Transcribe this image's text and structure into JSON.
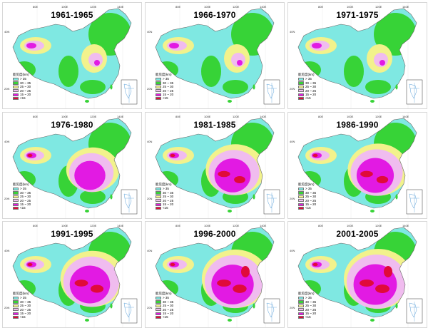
{
  "legend_title": "能见度(km)",
  "legend_items": [
    {
      "label": "> 35",
      "color": "#7fe8e2"
    },
    {
      "label": "30 ~ 35",
      "color": "#37d337"
    },
    {
      "label": "25 ~ 30",
      "color": "#f2f28c"
    },
    {
      "label": "20 ~ 25",
      "color": "#f0bcef"
    },
    {
      "label": "15 ~ 20",
      "color": "#e21ae3"
    },
    {
      "label": "<15",
      "color": "#e00a3a"
    }
  ],
  "lon_ticks": [
    "80E",
    "100E",
    "120E",
    "140E"
  ],
  "lat_ticks": [
    "40N",
    "20N"
  ],
  "panels": [
    {
      "title": "1961-1965"
    },
    {
      "title": "1966-1970"
    },
    {
      "title": "1971-1975"
    },
    {
      "title": "1976-1980"
    },
    {
      "title": "1981-1985"
    },
    {
      "title": "1986-1990"
    },
    {
      "title": "1991-1995"
    },
    {
      "title": "1996-2000"
    },
    {
      "title": "2001-2005"
    }
  ]
}
